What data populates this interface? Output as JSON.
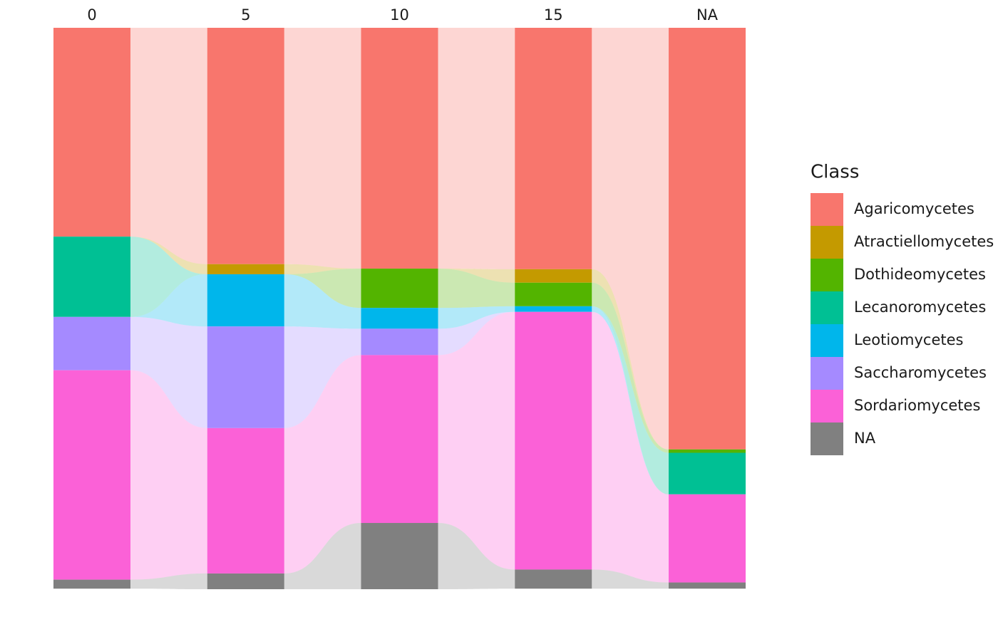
{
  "chart_data": {
    "type": "alluvial",
    "legend_title": "Class",
    "categories": [
      "0",
      "5",
      "10",
      "15",
      "NA"
    ],
    "ylim": [
      0,
      100
    ],
    "series": [
      {
        "name": "Agaricomycetes",
        "color": "#F8766D",
        "values": [
          37.2,
          42.1,
          42.9,
          43.0,
          75.1
        ]
      },
      {
        "name": "Atractiellomycetes",
        "color": "#C49A00",
        "values": [
          0,
          1.8,
          0,
          2.4,
          0
        ]
      },
      {
        "name": "Dothideomycetes",
        "color": "#53B400",
        "values": [
          0,
          0,
          7.0,
          4.2,
          0.6
        ]
      },
      {
        "name": "Lecanoromycetes",
        "color": "#00C094",
        "values": [
          14.3,
          0,
          0,
          0,
          7.4
        ]
      },
      {
        "name": "Leotiomycetes",
        "color": "#00B6EB",
        "values": [
          0,
          9.3,
          3.7,
          1.0,
          0
        ]
      },
      {
        "name": "Saccharomycetes",
        "color": "#A58AFF",
        "values": [
          9.5,
          18.1,
          4.7,
          0,
          0
        ]
      },
      {
        "name": "Sordariomycetes",
        "color": "#FB61D7",
        "values": [
          37.3,
          25.9,
          29.9,
          45.9,
          15.7
        ]
      },
      {
        "name": "NA",
        "color": "#808080",
        "values": [
          1.6,
          2.8,
          11.8,
          3.4,
          1.1
        ]
      }
    ]
  }
}
